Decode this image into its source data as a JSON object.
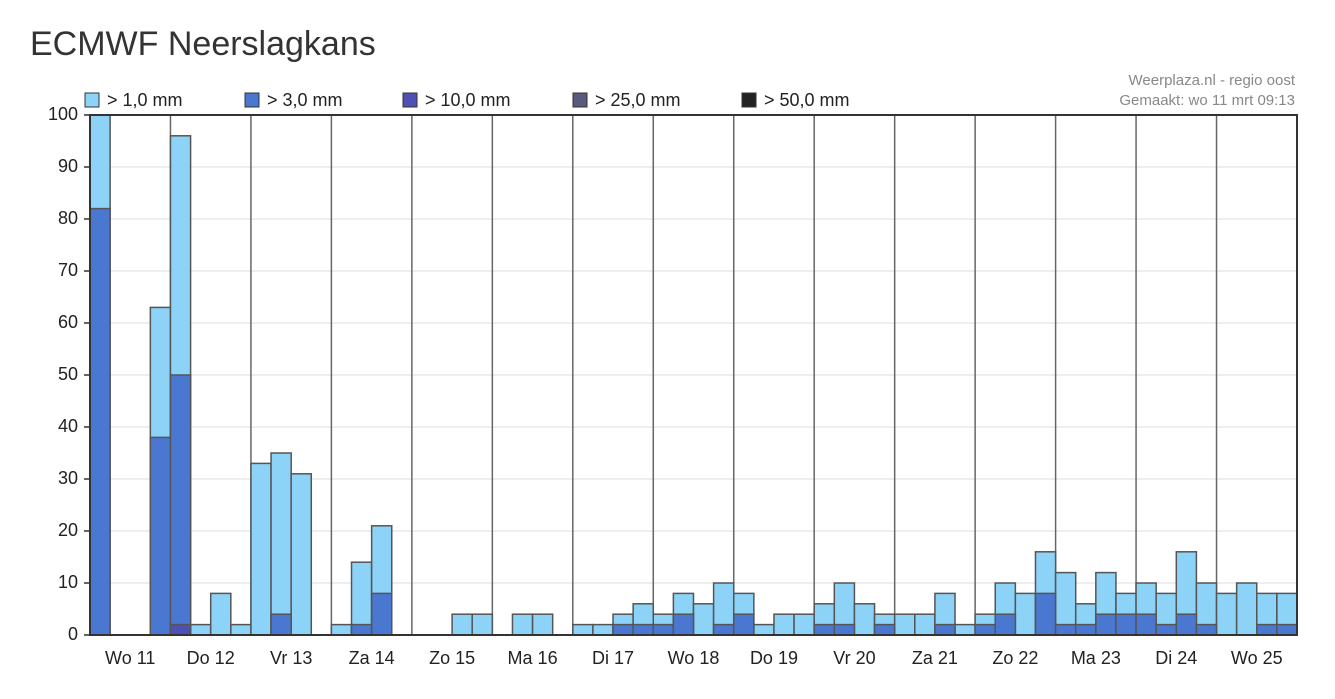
{
  "chart_data": {
    "type": "bar",
    "title": "ECMWF Neerslagkans",
    "source": "Weerplaza.nl - regio oost",
    "made": "Gemaakt: wo 11 mrt 09:13",
    "categories": [
      "Wo 11",
      "Do 12",
      "Vr 13",
      "Za 14",
      "Zo 15",
      "Ma 16",
      "Di 17",
      "Wo 18",
      "Do 19",
      "Vr 20",
      "Za 21",
      "Zo 22",
      "Ma 23",
      "Di 24",
      "Wo 25"
    ],
    "ylim": [
      0,
      100
    ],
    "yticks": [
      0,
      10,
      20,
      30,
      40,
      50,
      60,
      70,
      80,
      90,
      100
    ],
    "grid": true,
    "series": [
      {
        "name": "> 1,0 mm",
        "color": "#8dd3f7",
        "values": [
          [
            100,
            0,
            0,
            63
          ],
          [
            96,
            2,
            8,
            2
          ],
          [
            33,
            35,
            31,
            0
          ],
          [
            2,
            14,
            21,
            0
          ],
          [
            0,
            0,
            4,
            4
          ],
          [
            0,
            4,
            4,
            0
          ],
          [
            2,
            2,
            4,
            6
          ],
          [
            4,
            8,
            6,
            10
          ],
          [
            8,
            2,
            4,
            4
          ],
          [
            6,
            10,
            6,
            4
          ],
          [
            4,
            4,
            8,
            2
          ],
          [
            4,
            10,
            8,
            16
          ],
          [
            12,
            6,
            12,
            8
          ],
          [
            10,
            8,
            16,
            10
          ],
          [
            8,
            10,
            8,
            8
          ]
        ]
      },
      {
        "name": "> 3,0 mm",
        "color": "#4a78d0",
        "values": [
          [
            82,
            0,
            0,
            38
          ],
          [
            50,
            0,
            0,
            0
          ],
          [
            0,
            4,
            0,
            0
          ],
          [
            0,
            2,
            8,
            0
          ],
          [
            0,
            0,
            0,
            0
          ],
          [
            0,
            0,
            0,
            0
          ],
          [
            0,
            0,
            2,
            2
          ],
          [
            2,
            4,
            0,
            2
          ],
          [
            4,
            0,
            0,
            0
          ],
          [
            2,
            2,
            0,
            2
          ],
          [
            0,
            0,
            2,
            0
          ],
          [
            2,
            4,
            0,
            8
          ],
          [
            2,
            2,
            4,
            4
          ],
          [
            4,
            2,
            4,
            2
          ],
          [
            0,
            0,
            2,
            2
          ]
        ]
      },
      {
        "name": "> 10,0 mm",
        "color": "#5050b4",
        "values": [
          [
            0,
            0,
            0,
            0
          ],
          [
            2,
            0,
            0,
            0
          ],
          [
            0,
            0,
            0,
            0
          ],
          [
            0,
            0,
            0,
            0
          ],
          [
            0,
            0,
            0,
            0
          ],
          [
            0,
            0,
            0,
            0
          ],
          [
            0,
            0,
            0,
            0
          ],
          [
            0,
            0,
            0,
            0
          ],
          [
            0,
            0,
            0,
            0
          ],
          [
            0,
            0,
            0,
            0
          ],
          [
            0,
            0,
            0,
            0
          ],
          [
            0,
            0,
            0,
            0
          ],
          [
            0,
            0,
            0,
            0
          ],
          [
            0,
            0,
            0,
            0
          ],
          [
            0,
            0,
            0,
            0
          ]
        ]
      },
      {
        "name": "> 25,0 mm",
        "color": "#5a5a7a",
        "values": [
          [
            0,
            0,
            0,
            0
          ],
          [
            0,
            0,
            0,
            0
          ],
          [
            0,
            0,
            0,
            0
          ],
          [
            0,
            0,
            0,
            0
          ],
          [
            0,
            0,
            0,
            0
          ],
          [
            0,
            0,
            0,
            0
          ],
          [
            0,
            0,
            0,
            0
          ],
          [
            0,
            0,
            0,
            0
          ],
          [
            0,
            0,
            0,
            0
          ],
          [
            0,
            0,
            0,
            0
          ],
          [
            0,
            0,
            0,
            0
          ],
          [
            0,
            0,
            0,
            0
          ],
          [
            0,
            0,
            0,
            0
          ],
          [
            0,
            0,
            0,
            0
          ],
          [
            0,
            0,
            0,
            0
          ]
        ]
      },
      {
        "name": "> 50,0 mm",
        "color": "#222222",
        "values": [
          [
            0,
            0,
            0,
            0
          ],
          [
            0,
            0,
            0,
            0
          ],
          [
            0,
            0,
            0,
            0
          ],
          [
            0,
            0,
            0,
            0
          ],
          [
            0,
            0,
            0,
            0
          ],
          [
            0,
            0,
            0,
            0
          ],
          [
            0,
            0,
            0,
            0
          ],
          [
            0,
            0,
            0,
            0
          ],
          [
            0,
            0,
            0,
            0
          ],
          [
            0,
            0,
            0,
            0
          ],
          [
            0,
            0,
            0,
            0
          ],
          [
            0,
            0,
            0,
            0
          ],
          [
            0,
            0,
            0,
            0
          ],
          [
            0,
            0,
            0,
            0
          ],
          [
            0,
            0,
            0,
            0
          ]
        ]
      }
    ]
  }
}
